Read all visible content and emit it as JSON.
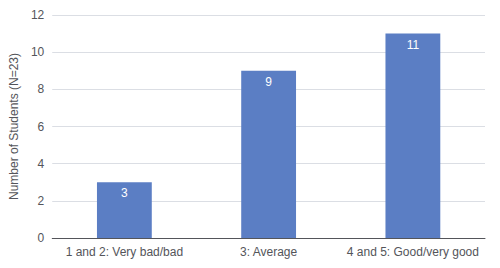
{
  "chart_data": {
    "type": "bar",
    "categories": [
      "1 and 2: Very bad/bad",
      "3: Average",
      "4 and 5: Good/very good"
    ],
    "values": [
      3,
      9,
      11
    ],
    "color": "#5b7ec4",
    "ylabel": "Number of Students (N=23)",
    "ylim": [
      0,
      12
    ],
    "yticks": [
      0,
      2,
      4,
      6,
      8,
      10,
      12
    ],
    "grid": true,
    "data_labels": true
  }
}
